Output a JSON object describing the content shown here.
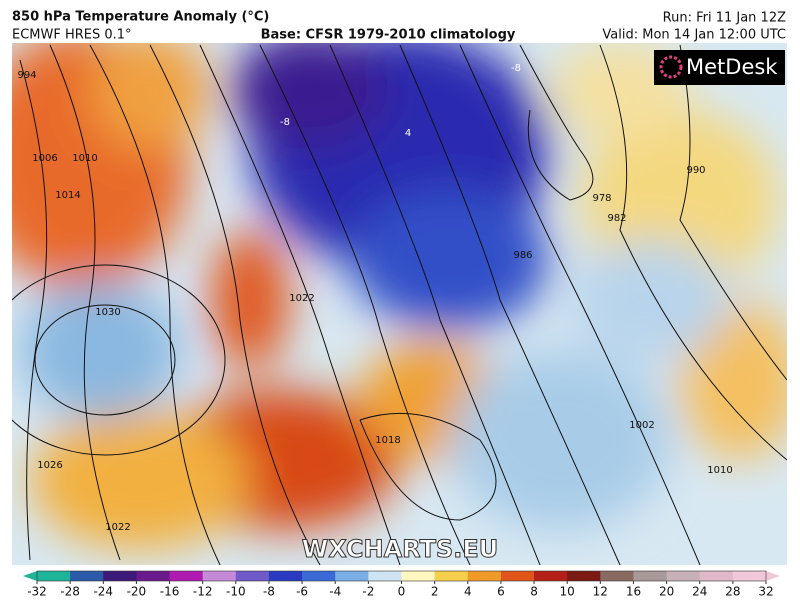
{
  "header": {
    "title": "850 hPa Temperature Anomaly (°C)",
    "model": "ECMWF HRES 0.1°",
    "base": "Base: CFSR 1979-2010 climatology",
    "run": "Run: Fri 11 Jan 12Z",
    "valid": "Valid: Mon 14 Jan 12:00 UTC"
  },
  "logo": "MetDesk",
  "watermark": "WXCHARTS.EU",
  "map_labels": [
    "994",
    "1006",
    "1010",
    "1014",
    "1030",
    "1026",
    "1022",
    "1022",
    "986",
    "978",
    "982",
    "990",
    "1018",
    "1002",
    "1010",
    "-8",
    "-8",
    "4"
  ],
  "colorbar": {
    "ticks": [
      -32,
      -28,
      -24,
      -20,
      -16,
      -12,
      -10,
      -8,
      -6,
      -4,
      -2,
      0,
      2,
      4,
      6,
      8,
      10,
      12,
      16,
      20,
      24,
      28,
      32
    ],
    "colors": [
      "#1fb39a",
      "#2a5aa8",
      "#3b1a78",
      "#6a1a8a",
      "#b01ab0",
      "#c48ad8",
      "#6e5ac8",
      "#2a3ac0",
      "#3a6ad8",
      "#7aaee6",
      "#cfe4f2",
      "#fff6c0",
      "#f6d04a",
      "#f09a2a",
      "#e0561a",
      "#b42018",
      "#7a1a12",
      "#8a6a60",
      "#a89a98",
      "#c8b0b8",
      "#e0b8c8",
      "#f0c8d8"
    ]
  }
}
